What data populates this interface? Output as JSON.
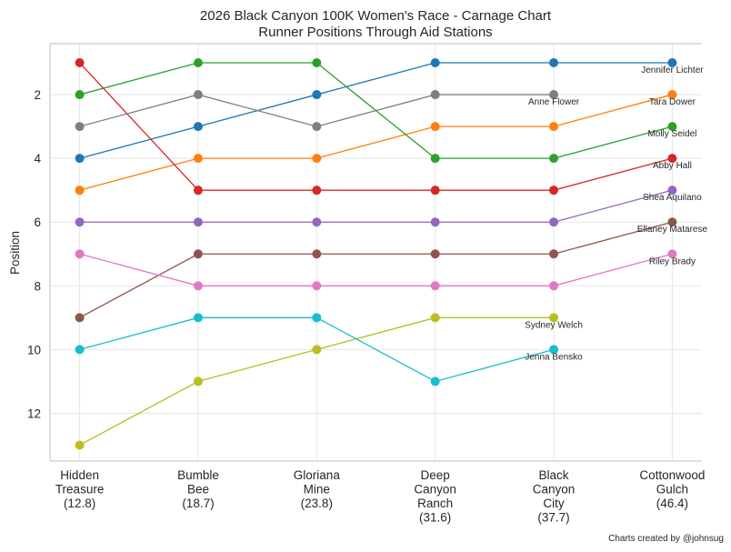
{
  "chart_data": {
    "type": "line",
    "title": "2026 Black Canyon 100K Women's Race - Carnage Chart",
    "subtitle": "Runner Positions Through Aid Stations",
    "xlabel": "",
    "ylabel": "Position",
    "ylim": [
      13.5,
      0.4
    ],
    "y_inverted": true,
    "yticks": [
      2,
      4,
      6,
      8,
      10,
      12
    ],
    "grid": true,
    "legend": "none (direct labels at last point)",
    "categories": [
      [
        "Hidden",
        "Treasure",
        "(12.8)"
      ],
      [
        "Bumble",
        "Bee",
        "(18.7)"
      ],
      [
        "Gloriana",
        "Mine",
        "(23.8)"
      ],
      [
        "Deep",
        "Canyon",
        "Ranch",
        "(31.6)"
      ],
      [
        "Black",
        "Canyon",
        "City",
        "(37.7)"
      ],
      [
        "Cottonwood",
        "Gulch",
        "(46.4)"
      ]
    ],
    "series": [
      {
        "name": "Jennifer Lichter",
        "color": "#1f77b4",
        "values": [
          4,
          3,
          2,
          1,
          1,
          1
        ]
      },
      {
        "name": "Tara Dower",
        "color": "#ff7f0e",
        "values": [
          5,
          4,
          4,
          3,
          3,
          2
        ]
      },
      {
        "name": "Molly Seidel",
        "color": "#2ca02c",
        "values": [
          2,
          1,
          1,
          4,
          4,
          3
        ]
      },
      {
        "name": "Abby Hall",
        "color": "#d62728",
        "values": [
          1,
          5,
          5,
          5,
          5,
          4
        ]
      },
      {
        "name": "Shea Aquilano",
        "color": "#9467bd",
        "values": [
          6,
          6,
          6,
          6,
          6,
          5
        ]
      },
      {
        "name": "Ellaney Matarese",
        "color": "#8c564b",
        "values": [
          9,
          7,
          7,
          7,
          7,
          6
        ]
      },
      {
        "name": "Riley Brady",
        "color": "#e377c2",
        "values": [
          7,
          8,
          8,
          8,
          8,
          7
        ]
      },
      {
        "name": "Anne Flower",
        "color": "#7f7f7f",
        "values": [
          3,
          2,
          3,
          2,
          2,
          null
        ]
      },
      {
        "name": "Sydney Welch",
        "color": "#bcbd22",
        "values": [
          13,
          11,
          10,
          9,
          9,
          null
        ]
      },
      {
        "name": "Jenna Bensko",
        "color": "#17becf",
        "values": [
          10,
          9,
          9,
          11,
          10,
          null
        ]
      }
    ]
  },
  "credit": "Charts created by @johnsug"
}
